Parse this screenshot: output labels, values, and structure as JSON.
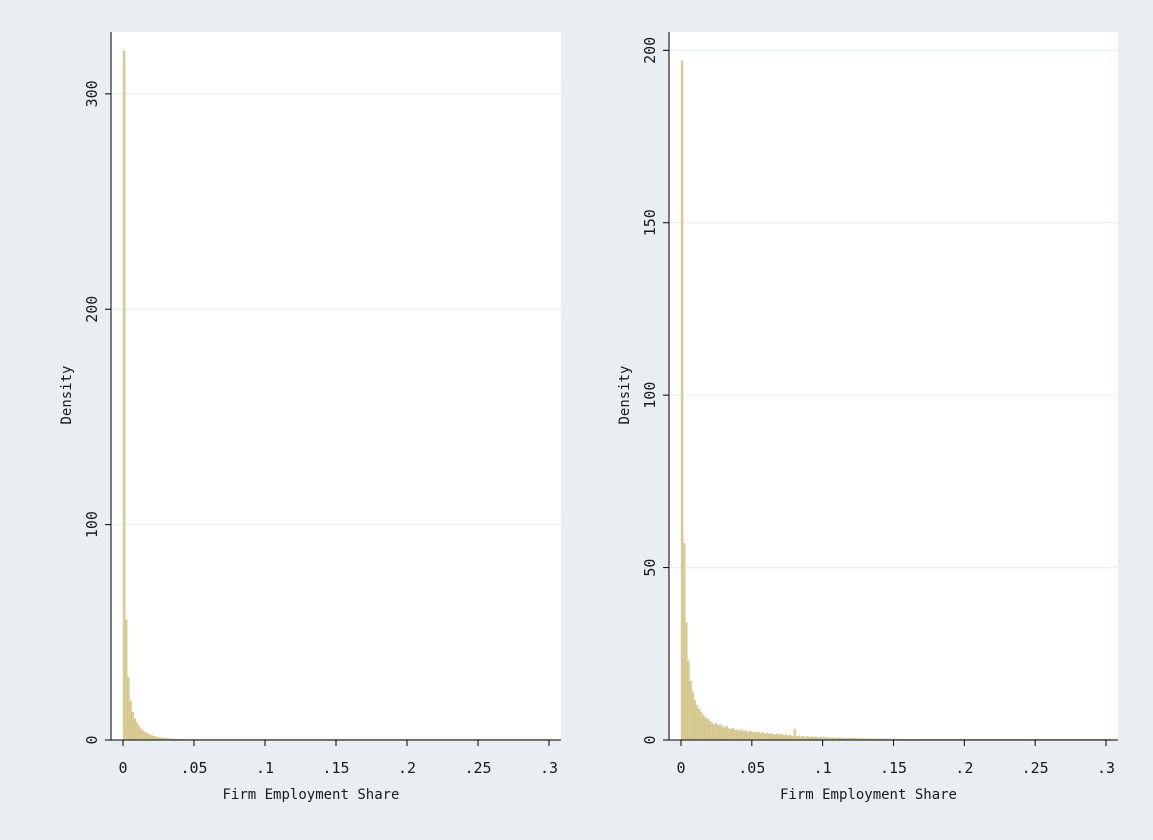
{
  "colors": {
    "background": "#e9eef2",
    "plot_background": "#ffffff",
    "gridline": "#eaf2f3",
    "bar_fill": "#d9cc96",
    "bar_edge": "#c9b979",
    "axis": "#000000"
  },
  "chart_data": [
    {
      "type": "bar",
      "subtype": "histogram",
      "xlabel": "Firm Employment Share",
      "ylabel": "Density",
      "xlim": [
        0,
        0.3
      ],
      "ylim": [
        0,
        325
      ],
      "xticks": [
        0,
        0.05,
        0.1,
        0.15,
        0.2,
        0.25,
        0.3
      ],
      "xtick_labels": [
        "0",
        ".05",
        ".1",
        ".15",
        ".2",
        ".25",
        ".3"
      ],
      "yticks": [
        0,
        100,
        200,
        300
      ],
      "ytick_labels": [
        "0",
        "100",
        "200",
        "300"
      ],
      "grid": true,
      "bin_width": 0.0015,
      "values": [
        320,
        56,
        29,
        18,
        13,
        10,
        8,
        6.5,
        5.2,
        4.3,
        3.5,
        3,
        2.5,
        2.1,
        1.8,
        1.5,
        1.3,
        1.1,
        0.95,
        0.8,
        0.7,
        0.6,
        0.5,
        0.45,
        0.4,
        0.35,
        0.3,
        0.25,
        0.22,
        0.2,
        0.18,
        0.16,
        0.15,
        0.14,
        0.13,
        0.12,
        0.11,
        0.1,
        0.1,
        0.09,
        0.09,
        0.08,
        0.08,
        0.07,
        0.07,
        0.07,
        0.06,
        0.06,
        0.06,
        0.05,
        0.05,
        0.05,
        0.05,
        0.05,
        0.04,
        0.04,
        0.04,
        0.04,
        0.04,
        0.04,
        0.03,
        0.03,
        0.03,
        0.03,
        0.03,
        0.03,
        0.03,
        0.03,
        0.03,
        0.03,
        0.03,
        0.03,
        0.03,
        0.03,
        0.03,
        0.03,
        0.03,
        0.03,
        0.03,
        0.03,
        0.02,
        0.02,
        0.02,
        0.02,
        0.02,
        0.02,
        0.02,
        0.02,
        0.02,
        0.02,
        0.02,
        0.02,
        0.02,
        0.02,
        0.02,
        0.02,
        0.02,
        0.02,
        0.02,
        0.02,
        0.02,
        0.02,
        0.02,
        0.02,
        0.02,
        0.02,
        0.02,
        0.02,
        0.02,
        0.02,
        0.02,
        0.02,
        0.02,
        0.02,
        0.02,
        0.02,
        0.02,
        0.02,
        0.02,
        0.02,
        0.02,
        0.02,
        0.02,
        0.02,
        0.02,
        0.02,
        0.02,
        0.02,
        0.02,
        0.02,
        0.02,
        0.02,
        0.02,
        0.02,
        0.02,
        0.02,
        0.02,
        0.02,
        0.02,
        0.02,
        0.02,
        0.02,
        0.02,
        0.02,
        0.02,
        0.02,
        0.02,
        0.02,
        0.02,
        0.02,
        0.02,
        0.02,
        0.02,
        0.02,
        0.02,
        0.02,
        0.02,
        0.02,
        0.02,
        0.02,
        0.02,
        0.02,
        0.02,
        0.02,
        0.02,
        0.02,
        0.02,
        0.02,
        0.02,
        0.02,
        0.02,
        0.02,
        0.02,
        0.02,
        0.02,
        0.02,
        0.02,
        0.02,
        0.02,
        0.02,
        0.02,
        0.02,
        0.02,
        0.02,
        0.02,
        0.02,
        0.02,
        0.02,
        0.02,
        0.02,
        0.02,
        0.02,
        0.02,
        0.02,
        0.02,
        0.02,
        0.02,
        0.02,
        0.02,
        0.02
      ]
    },
    {
      "type": "bar",
      "subtype": "histogram",
      "xlabel": "Firm Employment Share",
      "ylabel": "Density",
      "xlim": [
        0,
        0.3
      ],
      "ylim": [
        0,
        203
      ],
      "xticks": [
        0,
        0.05,
        0.1,
        0.15,
        0.2,
        0.25,
        0.3
      ],
      "xtick_labels": [
        "0",
        ".05",
        ".1",
        ".15",
        ".2",
        ".25",
        ".3"
      ],
      "yticks": [
        0,
        50,
        100,
        150,
        200
      ],
      "ytick_labels": [
        "0",
        "50",
        "100",
        "150",
        "200"
      ],
      "grid": true,
      "bin_width": 0.0015,
      "values": [
        197,
        57,
        34,
        23,
        17,
        14,
        11.5,
        10,
        9,
        8,
        7.2,
        6.5,
        6,
        5.5,
        5,
        4.6,
        4.8,
        4.2,
        4.5,
        3.9,
        3.6,
        4,
        3.3,
        3.1,
        3.4,
        2.8,
        3,
        2.6,
        2.9,
        2.5,
        2.7,
        2.3,
        2.6,
        2.2,
        2.4,
        2.1,
        2.3,
        1.9,
        2.2,
        1.8,
        2,
        1.7,
        1.9,
        1.6,
        1.5,
        1.8,
        1.4,
        1.6,
        1.3,
        1.5,
        1.2,
        1.4,
        1.1,
        3.2,
        1.0,
        1.2,
        0.9,
        1.1,
        0.85,
        1.0,
        0.8,
        0.95,
        0.75,
        0.9,
        0.7,
        0.85,
        0.65,
        0.8,
        0.6,
        0.75,
        0.55,
        0.7,
        0.5,
        0.65,
        0.5,
        0.6,
        0.45,
        0.55,
        0.45,
        0.5,
        0.4,
        0.5,
        0.4,
        0.45,
        0.35,
        0.45,
        0.35,
        0.4,
        0.35,
        0.4,
        0.3,
        0.4,
        0.3,
        0.35,
        0.3,
        0.35,
        0.3,
        0.3,
        0.25,
        0.3,
        0.25,
        0.3,
        0.25,
        0.25,
        0.25,
        0.25,
        0.2,
        0.25,
        0.2,
        0.25,
        0.2,
        0.2,
        0.2,
        0.2,
        0.2,
        0.2,
        0.2,
        0.2,
        0.2,
        0.2,
        0.2,
        0.2,
        0.2,
        0.2,
        0.2,
        0.2,
        0.2,
        0.2,
        0.2,
        0.2,
        0.2,
        0.2,
        0.2,
        0.2,
        0.2,
        0.2,
        0.2,
        0.2,
        0.2,
        0.2,
        0.2,
        0.2,
        0.2,
        0.2,
        0.2,
        0.2,
        0.2,
        0.2,
        0.2,
        0.2,
        0.2,
        0.2,
        0.2,
        0.2,
        0.2,
        0.2,
        0.2,
        0.2,
        0.2,
        0.2,
        0.2,
        0.2,
        0.2,
        0.2,
        0.2,
        0.2,
        0.2,
        0.2,
        0.2,
        0.2,
        0.2,
        0.2,
        0.2,
        0.2,
        0.2,
        0.2,
        0.2,
        0.2,
        0.2,
        0.2,
        0.2,
        0.2,
        0.2,
        0.2,
        0.2,
        0.2,
        0.2,
        0.2,
        0.2,
        0.2,
        0.2,
        0.2,
        0.2,
        0.2,
        0.2,
        0.2,
        0.2,
        0.2,
        0.2,
        0.2,
        0.2,
        0.2,
        0.2
      ]
    }
  ]
}
